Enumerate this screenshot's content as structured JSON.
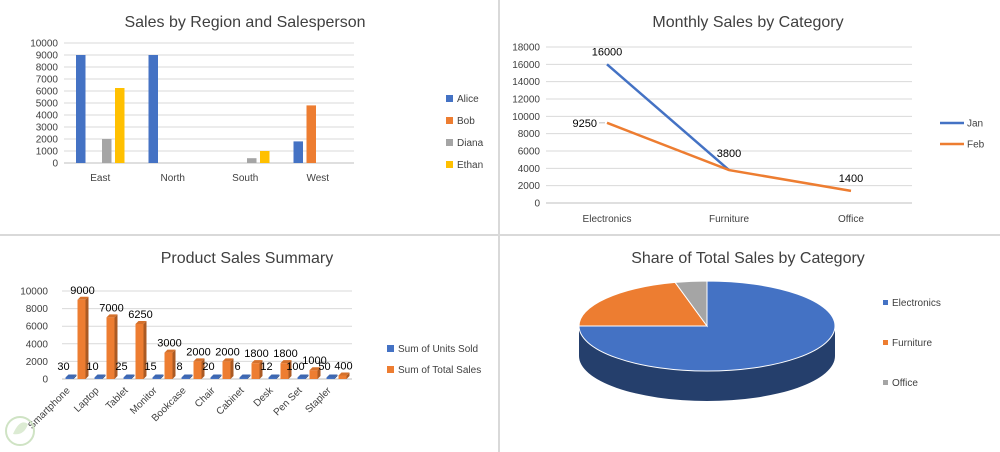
{
  "colors": {
    "blue": "#4472c4",
    "orange": "#ed7d31",
    "gray": "#a5a5a5",
    "yellow": "#ffc000",
    "grid": "#d9d9d9"
  },
  "chart_data": [
    {
      "type": "bar",
      "title": "Sales by Region and Salesperson",
      "categories": [
        "East",
        "North",
        "South",
        "West"
      ],
      "series": [
        {
          "name": "Alice",
          "color": "#4472c4",
          "values": [
            9000,
            9000,
            0,
            1800
          ]
        },
        {
          "name": "Bob",
          "color": "#ed7d31",
          "values": [
            0,
            0,
            0,
            4800
          ]
        },
        {
          "name": "Diana",
          "color": "#a5a5a5",
          "values": [
            2000,
            0,
            400,
            0
          ]
        },
        {
          "name": "Ethan",
          "color": "#ffc000",
          "values": [
            6250,
            0,
            1000,
            0
          ]
        }
      ],
      "ylim": [
        0,
        10000
      ],
      "yticks": [
        "0",
        "1000",
        "2000",
        "3000",
        "4000",
        "5000",
        "6000",
        "7000",
        "8000",
        "9000",
        "10000"
      ],
      "grid": true,
      "legend": "right"
    },
    {
      "type": "line",
      "title": "Monthly Sales by Category",
      "categories": [
        "Electronics",
        "Furniture",
        "Office"
      ],
      "series": [
        {
          "name": "Jan",
          "color": "#4472c4",
          "values": [
            16000,
            3800,
            null
          ],
          "labels": [
            "16000",
            "3800",
            ""
          ]
        },
        {
          "name": "Feb",
          "color": "#ed7d31",
          "values": [
            9250,
            3800,
            1400
          ],
          "labels": [
            "9250",
            "",
            "1400"
          ]
        }
      ],
      "ylim": [
        0,
        18000
      ],
      "yticks": [
        "0",
        "2000",
        "4000",
        "6000",
        "8000",
        "10000",
        "12000",
        "14000",
        "16000",
        "18000"
      ],
      "grid": true,
      "legend": "right"
    },
    {
      "type": "bar",
      "title": "Product Sales Summary",
      "categories": [
        "Smartphone",
        "Laptop",
        "Tablet",
        "Monitor",
        "Bookcase",
        "Chair",
        "Cabinet",
        "Desk",
        "Pen Set",
        "Stapler"
      ],
      "series": [
        {
          "name": "Sum of Units Sold",
          "color": "#4472c4",
          "values": [
            30,
            10,
            25,
            15,
            8,
            20,
            6,
            12,
            100,
            50
          ],
          "labels": [
            "30",
            "10",
            "25",
            "15",
            "8",
            "20",
            "6",
            "12",
            "100",
            "50"
          ]
        },
        {
          "name": "Sum of Total Sales",
          "color": "#ed7d31",
          "values": [
            9000,
            7000,
            6250,
            3000,
            2000,
            2000,
            1800,
            1800,
            1000,
            400
          ],
          "labels": [
            "9000",
            "7000",
            "6250",
            "3000",
            "2000",
            "2000",
            "1800",
            "1800",
            "1000",
            "400"
          ]
        }
      ],
      "ylim": [
        0,
        10000
      ],
      "yticks": [
        "0",
        "2000",
        "4000",
        "6000",
        "8000",
        "10000"
      ],
      "grid": true,
      "legend": "right"
    },
    {
      "type": "pie",
      "title": "Share of Total Sales by Category",
      "categories": [
        "Electronics",
        "Furniture",
        "Office"
      ],
      "values": [
        75,
        21,
        4
      ],
      "colors": [
        "#4472c4",
        "#ed7d31",
        "#a5a5a5"
      ],
      "legend": "right"
    }
  ]
}
